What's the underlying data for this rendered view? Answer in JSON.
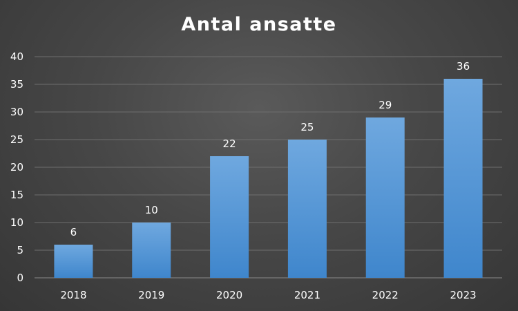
{
  "chart_data": {
    "type": "bar",
    "title": "Antal ansatte",
    "xlabel": "",
    "ylabel": "",
    "categories": [
      "2018",
      "2019",
      "2020",
      "2021",
      "2022",
      "2023"
    ],
    "values": [
      6,
      10,
      22,
      25,
      29,
      36
    ],
    "ylim": [
      0,
      40
    ],
    "yticks": [
      0,
      5,
      10,
      15,
      20,
      25,
      30,
      35,
      40
    ],
    "grid": true,
    "legend": "none",
    "colors": {
      "bar_top": "#6fa8df",
      "bar_bottom": "#3f86cc",
      "gridline": "#6e6e6e",
      "text": "#ffffff"
    }
  }
}
